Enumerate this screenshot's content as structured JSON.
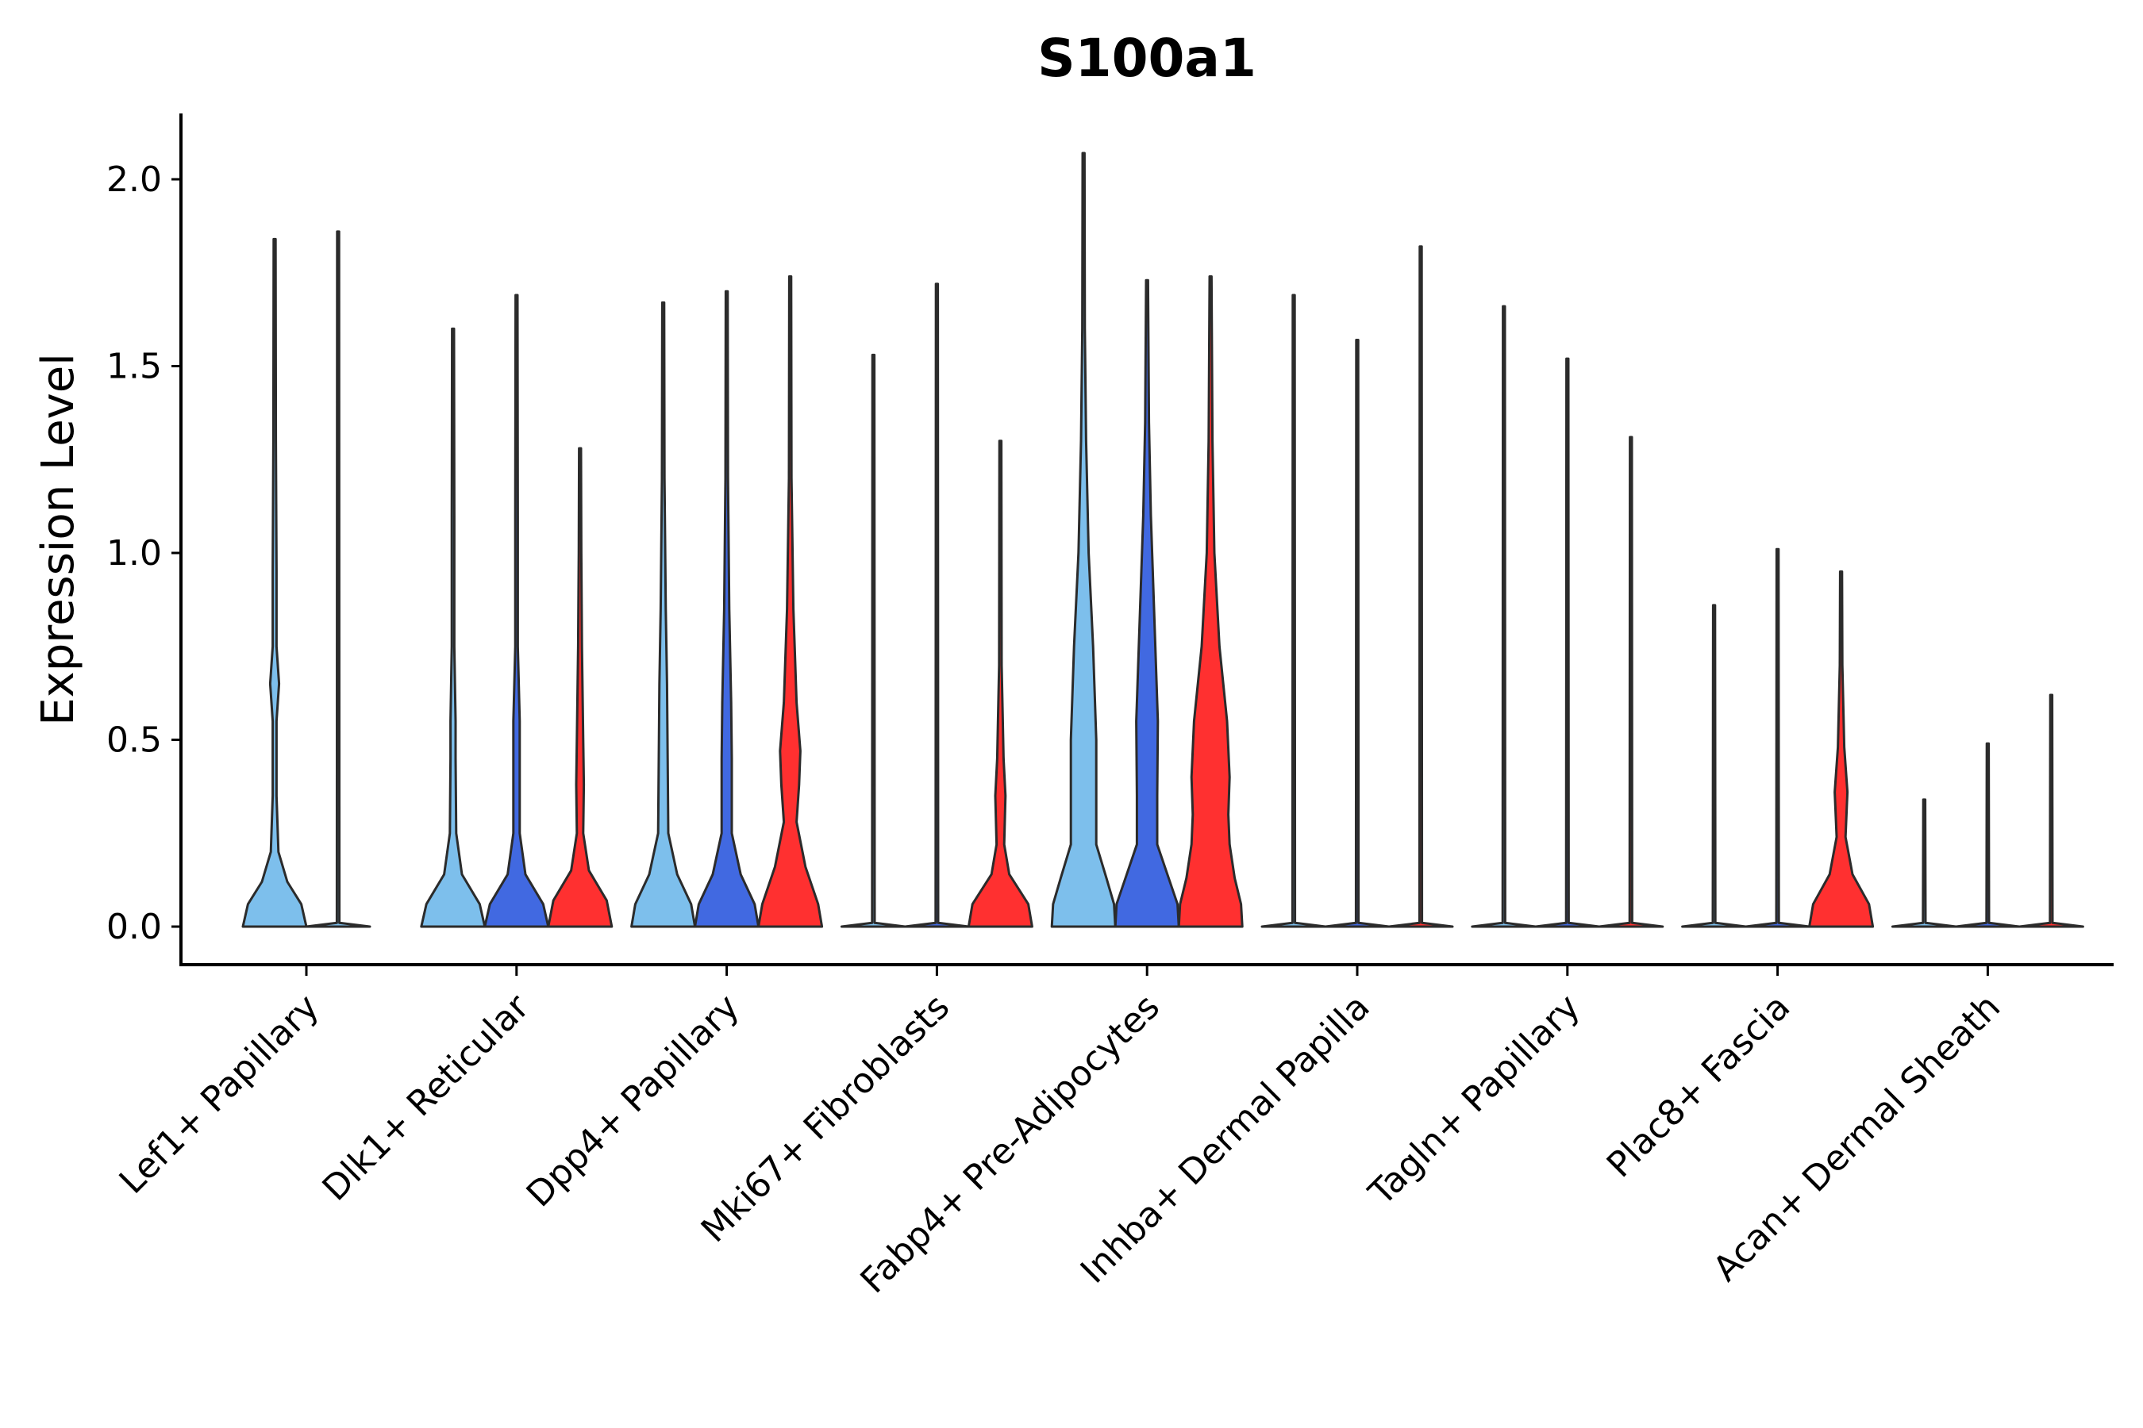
{
  "chart_data": {
    "type": "violin",
    "title": "S100a1",
    "xlabel": "",
    "ylabel": "Expression Level",
    "ylim": [
      -0.1,
      2.2
    ],
    "yticks": [
      "0.0",
      "0.5",
      "1.0",
      "1.5",
      "2.0"
    ],
    "ytick_values": [
      0,
      0.5,
      1.0,
      1.5,
      2.0
    ],
    "grid": false,
    "legend": "none",
    "colors": {
      "light_blue": "#7dbfec",
      "blue": "#4169e1",
      "red": "#ff3030"
    },
    "categories": [
      "Lef1+ Papillary",
      "Dlk1+ Reticular",
      "Dpp4+ Papillary",
      "Mki67+ Fibroblasts",
      "Fabp4+ Pre-Adipocytes",
      "Inhba+ Dermal Papilla",
      "Tagln+ Papillary",
      "Plac8+ Fascia",
      "Acan+ Dermal Sheath"
    ],
    "groups": [
      {
        "category": "Lef1+ Papillary",
        "violins": [
          {
            "color": "#7dbfec",
            "max": 1.84,
            "profile": [
              [
                0,
                0.5
              ],
              [
                0.06,
                0.42
              ],
              [
                0.12,
                0.2
              ],
              [
                0.2,
                0.06
              ],
              [
                0.35,
                0.03
              ],
              [
                0.55,
                0.03
              ],
              [
                0.65,
                0.07
              ],
              [
                0.75,
                0.03
              ],
              [
                0.95,
                0.03
              ],
              [
                1.3,
                0.02
              ],
              [
                1.84,
                0
              ]
            ]
          },
          {
            "color": "#7dbfec",
            "max": 1.86,
            "profile": [
              [
                0,
                0.5
              ],
              [
                0.01,
                0.02
              ],
              [
                1.86,
                0
              ]
            ]
          }
        ]
      },
      {
        "category": "Dlk1+ Reticular",
        "violins": [
          {
            "color": "#7dbfec",
            "max": 1.6,
            "profile": [
              [
                0,
                0.5
              ],
              [
                0.06,
                0.42
              ],
              [
                0.14,
                0.14
              ],
              [
                0.25,
                0.05
              ],
              [
                0.45,
                0.04
              ],
              [
                0.55,
                0.04
              ],
              [
                0.75,
                0.02
              ],
              [
                1.1,
                0.02
              ],
              [
                1.6,
                0
              ]
            ]
          },
          {
            "color": "#4169e1",
            "max": 1.69,
            "profile": [
              [
                0,
                0.5
              ],
              [
                0.06,
                0.42
              ],
              [
                0.14,
                0.14
              ],
              [
                0.25,
                0.05
              ],
              [
                0.45,
                0.05
              ],
              [
                0.55,
                0.05
              ],
              [
                0.75,
                0.02
              ],
              [
                1.1,
                0.02
              ],
              [
                1.69,
                0
              ]
            ]
          },
          {
            "color": "#ff3030",
            "max": 1.28,
            "profile": [
              [
                0,
                0.5
              ],
              [
                0.07,
                0.42
              ],
              [
                0.15,
                0.14
              ],
              [
                0.25,
                0.05
              ],
              [
                0.38,
                0.06
              ],
              [
                0.5,
                0.05
              ],
              [
                0.75,
                0.03
              ],
              [
                1.0,
                0.02
              ],
              [
                1.28,
                0
              ]
            ]
          }
        ]
      },
      {
        "category": "Dpp4+ Papillary",
        "violins": [
          {
            "color": "#7dbfec",
            "max": 1.67,
            "profile": [
              [
                0,
                0.5
              ],
              [
                0.06,
                0.44
              ],
              [
                0.14,
                0.22
              ],
              [
                0.25,
                0.08
              ],
              [
                0.45,
                0.07
              ],
              [
                0.65,
                0.06
              ],
              [
                0.85,
                0.04
              ],
              [
                1.2,
                0.02
              ],
              [
                1.67,
                0
              ]
            ]
          },
          {
            "color": "#4169e1",
            "max": 1.7,
            "profile": [
              [
                0,
                0.5
              ],
              [
                0.06,
                0.44
              ],
              [
                0.14,
                0.22
              ],
              [
                0.25,
                0.08
              ],
              [
                0.45,
                0.08
              ],
              [
                0.6,
                0.07
              ],
              [
                0.85,
                0.04
              ],
              [
                1.2,
                0.02
              ],
              [
                1.7,
                0
              ]
            ]
          },
          {
            "color": "#ff3030",
            "max": 1.74,
            "profile": [
              [
                0,
                0.5
              ],
              [
                0.06,
                0.44
              ],
              [
                0.16,
                0.24
              ],
              [
                0.28,
                0.1
              ],
              [
                0.38,
                0.14
              ],
              [
                0.47,
                0.16
              ],
              [
                0.6,
                0.1
              ],
              [
                0.85,
                0.05
              ],
              [
                1.2,
                0.02
              ],
              [
                1.74,
                0
              ]
            ]
          }
        ]
      },
      {
        "category": "Mki67+ Fibroblasts",
        "violins": [
          {
            "color": "#7dbfec",
            "max": 1.53,
            "profile": [
              [
                0,
                0.5
              ],
              [
                0.01,
                0.02
              ],
              [
                1.53,
                0
              ]
            ]
          },
          {
            "color": "#4169e1",
            "max": 1.72,
            "profile": [
              [
                0,
                0.5
              ],
              [
                0.01,
                0.02
              ],
              [
                1.72,
                0
              ]
            ]
          },
          {
            "color": "#ff3030",
            "max": 1.3,
            "profile": [
              [
                0,
                0.5
              ],
              [
                0.06,
                0.44
              ],
              [
                0.14,
                0.14
              ],
              [
                0.22,
                0.06
              ],
              [
                0.35,
                0.08
              ],
              [
                0.45,
                0.05
              ],
              [
                0.7,
                0.02
              ],
              [
                1.3,
                0
              ]
            ]
          }
        ]
      },
      {
        "category": "Fabp4+ Pre-Adipocytes",
        "violins": [
          {
            "color": "#7dbfec",
            "max": 2.07,
            "profile": [
              [
                0,
                0.5
              ],
              [
                0.06,
                0.48
              ],
              [
                0.13,
                0.36
              ],
              [
                0.22,
                0.2
              ],
              [
                0.35,
                0.2
              ],
              [
                0.5,
                0.2
              ],
              [
                0.75,
                0.15
              ],
              [
                1.0,
                0.08
              ],
              [
                1.3,
                0.04
              ],
              [
                1.6,
                0.02
              ],
              [
                2.07,
                0
              ]
            ]
          },
          {
            "color": "#4169e1",
            "max": 1.73,
            "profile": [
              [
                0,
                0.5
              ],
              [
                0.06,
                0.48
              ],
              [
                0.13,
                0.34
              ],
              [
                0.22,
                0.16
              ],
              [
                0.35,
                0.16
              ],
              [
                0.55,
                0.17
              ],
              [
                0.8,
                0.12
              ],
              [
                1.1,
                0.06
              ],
              [
                1.35,
                0.03
              ],
              [
                1.73,
                0
              ]
            ]
          },
          {
            "color": "#ff3030",
            "max": 1.74,
            "profile": [
              [
                0,
                0.5
              ],
              [
                0.06,
                0.48
              ],
              [
                0.13,
                0.38
              ],
              [
                0.22,
                0.3
              ],
              [
                0.3,
                0.28
              ],
              [
                0.4,
                0.3
              ],
              [
                0.55,
                0.26
              ],
              [
                0.75,
                0.14
              ],
              [
                1.0,
                0.06
              ],
              [
                1.3,
                0.03
              ],
              [
                1.74,
                0
              ]
            ]
          }
        ]
      },
      {
        "category": "Inhba+ Dermal Papilla",
        "violins": [
          {
            "color": "#7dbfec",
            "max": 1.69,
            "profile": [
              [
                0,
                0.5
              ],
              [
                0.01,
                0.02
              ],
              [
                1.69,
                0
              ]
            ]
          },
          {
            "color": "#4169e1",
            "max": 1.57,
            "profile": [
              [
                0,
                0.5
              ],
              [
                0.01,
                0.02
              ],
              [
                1.57,
                0
              ]
            ]
          },
          {
            "color": "#ff3030",
            "max": 1.82,
            "profile": [
              [
                0,
                0.5
              ],
              [
                0.01,
                0.02
              ],
              [
                1.82,
                0
              ]
            ]
          }
        ]
      },
      {
        "category": "Tagln+ Papillary",
        "violins": [
          {
            "color": "#7dbfec",
            "max": 1.66,
            "profile": [
              [
                0,
                0.5
              ],
              [
                0.01,
                0.02
              ],
              [
                1.66,
                0
              ]
            ]
          },
          {
            "color": "#4169e1",
            "max": 1.52,
            "profile": [
              [
                0,
                0.5
              ],
              [
                0.01,
                0.02
              ],
              [
                1.52,
                0
              ]
            ]
          },
          {
            "color": "#ff3030",
            "max": 1.31,
            "profile": [
              [
                0,
                0.5
              ],
              [
                0.01,
                0.02
              ],
              [
                1.31,
                0
              ]
            ]
          }
        ]
      },
      {
        "category": "Plac8+ Fascia",
        "violins": [
          {
            "color": "#7dbfec",
            "max": 0.86,
            "profile": [
              [
                0,
                0.5
              ],
              [
                0.01,
                0.02
              ],
              [
                0.86,
                0
              ]
            ]
          },
          {
            "color": "#4169e1",
            "max": 1.01,
            "profile": [
              [
                0,
                0.5
              ],
              [
                0.01,
                0.02
              ],
              [
                1.01,
                0
              ]
            ]
          },
          {
            "color": "#ff3030",
            "max": 0.95,
            "profile": [
              [
                0,
                0.5
              ],
              [
                0.06,
                0.44
              ],
              [
                0.14,
                0.18
              ],
              [
                0.24,
                0.07
              ],
              [
                0.36,
                0.1
              ],
              [
                0.48,
                0.05
              ],
              [
                0.7,
                0.02
              ],
              [
                0.95,
                0
              ]
            ]
          }
        ]
      },
      {
        "category": "Acan+ Dermal Sheath",
        "violins": [
          {
            "color": "#7dbfec",
            "max": 0.34,
            "profile": [
              [
                0,
                0.5
              ],
              [
                0.01,
                0.02
              ],
              [
                0.34,
                0
              ]
            ]
          },
          {
            "color": "#4169e1",
            "max": 0.49,
            "profile": [
              [
                0,
                0.5
              ],
              [
                0.01,
                0.02
              ],
              [
                0.49,
                0
              ]
            ]
          },
          {
            "color": "#ff3030",
            "max": 0.62,
            "profile": [
              [
                0,
                0.5
              ],
              [
                0.01,
                0.02
              ],
              [
                0.62,
                0
              ]
            ]
          }
        ]
      }
    ]
  }
}
